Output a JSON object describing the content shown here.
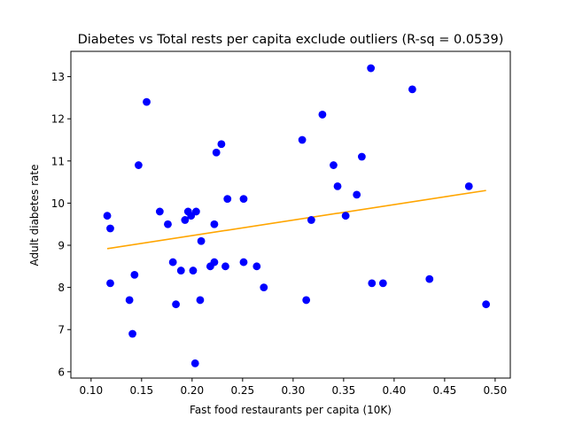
{
  "chart_data": {
    "type": "scatter",
    "title": "Diabetes vs Total rests per capita exclude outliers (R-sq = 0.0539)",
    "xlabel": "Fast food restaurants per capita (10K)",
    "ylabel": "Adult diabetes rate",
    "xlim": [
      0.08,
      0.515
    ],
    "ylim": [
      5.85,
      13.6
    ],
    "xticks": [
      "0.10",
      "0.15",
      "0.20",
      "0.25",
      "0.30",
      "0.35",
      "0.40",
      "0.45",
      "0.50"
    ],
    "yticks": [
      "6",
      "7",
      "8",
      "9",
      "10",
      "11",
      "12",
      "13"
    ],
    "grid": false,
    "colors": {
      "points": "#0000ff",
      "trendline": "#ffa500"
    },
    "points": [
      {
        "x": 0.116,
        "y": 9.7
      },
      {
        "x": 0.119,
        "y": 9.4
      },
      {
        "x": 0.119,
        "y": 8.1
      },
      {
        "x": 0.138,
        "y": 7.7
      },
      {
        "x": 0.141,
        "y": 6.9
      },
      {
        "x": 0.143,
        "y": 8.3
      },
      {
        "x": 0.147,
        "y": 10.9
      },
      {
        "x": 0.155,
        "y": 12.4
      },
      {
        "x": 0.168,
        "y": 9.8
      },
      {
        "x": 0.176,
        "y": 9.5
      },
      {
        "x": 0.181,
        "y": 8.6
      },
      {
        "x": 0.184,
        "y": 7.6
      },
      {
        "x": 0.189,
        "y": 8.4
      },
      {
        "x": 0.193,
        "y": 9.6
      },
      {
        "x": 0.196,
        "y": 9.8
      },
      {
        "x": 0.199,
        "y": 9.7
      },
      {
        "x": 0.201,
        "y": 8.4
      },
      {
        "x": 0.204,
        "y": 9.8
      },
      {
        "x": 0.203,
        "y": 6.2
      },
      {
        "x": 0.208,
        "y": 7.7
      },
      {
        "x": 0.209,
        "y": 9.1
      },
      {
        "x": 0.218,
        "y": 8.5
      },
      {
        "x": 0.222,
        "y": 8.6
      },
      {
        "x": 0.222,
        "y": 9.5
      },
      {
        "x": 0.224,
        "y": 11.2
      },
      {
        "x": 0.229,
        "y": 11.4
      },
      {
        "x": 0.233,
        "y": 8.5
      },
      {
        "x": 0.235,
        "y": 10.1
      },
      {
        "x": 0.251,
        "y": 10.1
      },
      {
        "x": 0.251,
        "y": 8.6
      },
      {
        "x": 0.264,
        "y": 8.5
      },
      {
        "x": 0.271,
        "y": 8.0
      },
      {
        "x": 0.309,
        "y": 11.5
      },
      {
        "x": 0.313,
        "y": 7.7
      },
      {
        "x": 0.318,
        "y": 9.6
      },
      {
        "x": 0.329,
        "y": 12.1
      },
      {
        "x": 0.34,
        "y": 10.9
      },
      {
        "x": 0.344,
        "y": 10.4
      },
      {
        "x": 0.352,
        "y": 9.7
      },
      {
        "x": 0.363,
        "y": 10.2
      },
      {
        "x": 0.368,
        "y": 11.1
      },
      {
        "x": 0.377,
        "y": 13.2
      },
      {
        "x": 0.378,
        "y": 8.1
      },
      {
        "x": 0.389,
        "y": 8.1
      },
      {
        "x": 0.418,
        "y": 12.7
      },
      {
        "x": 0.435,
        "y": 8.2
      },
      {
        "x": 0.474,
        "y": 10.4
      },
      {
        "x": 0.491,
        "y": 7.6
      }
    ],
    "trendline": [
      {
        "x": 0.116,
        "y": 8.92
      },
      {
        "x": 0.491,
        "y": 10.3
      }
    ]
  }
}
